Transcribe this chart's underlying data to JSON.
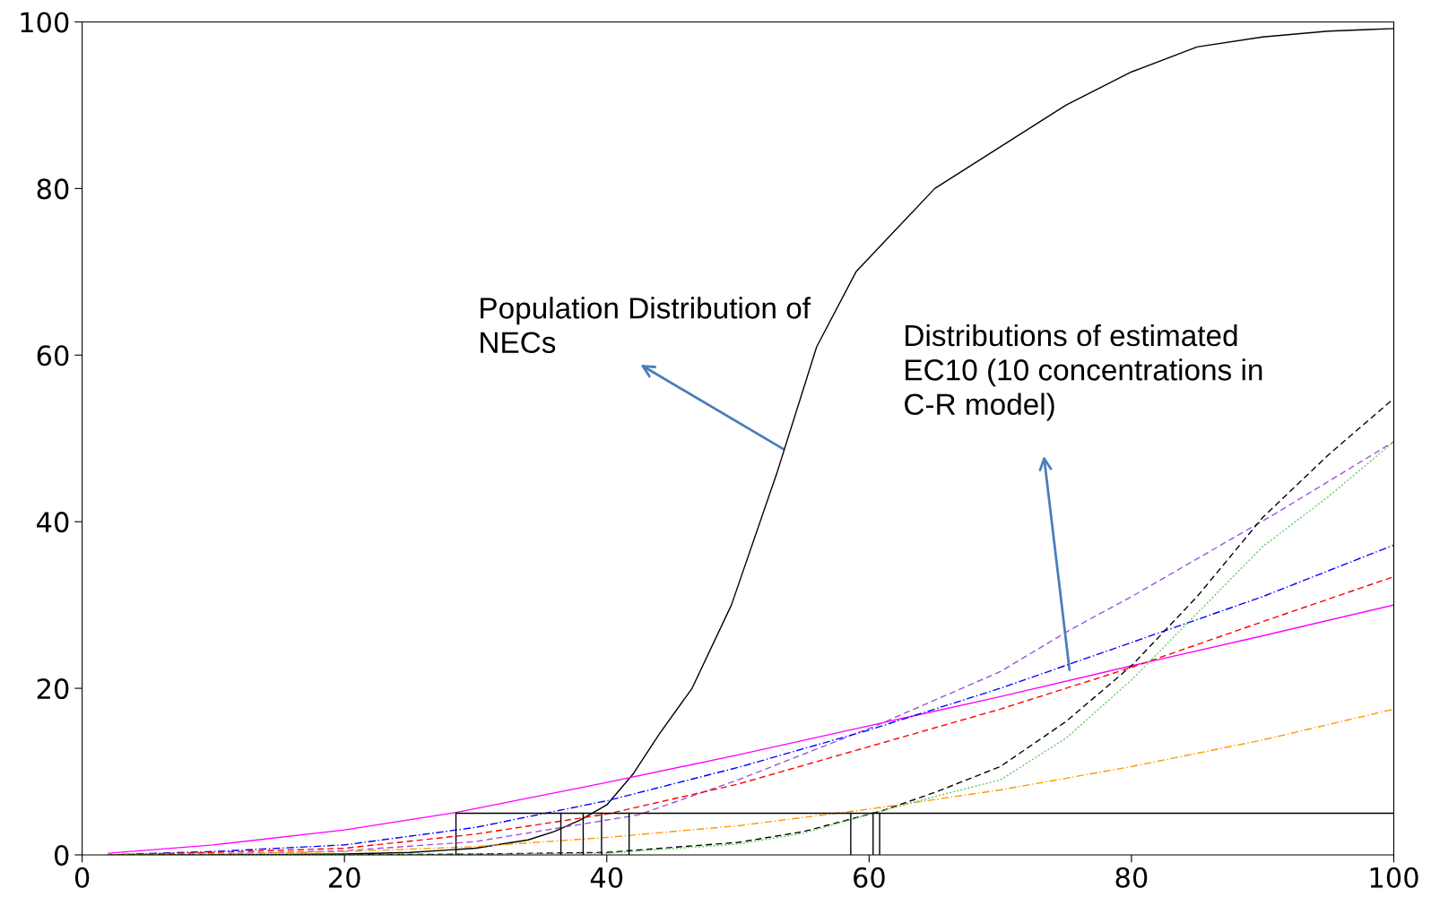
{
  "chart_data": {
    "type": "line",
    "xlim": [
      0,
      100
    ],
    "ylim": [
      0,
      100
    ],
    "xticks": [
      0,
      20,
      40,
      60,
      80,
      100
    ],
    "yticks": [
      0,
      20,
      40,
      60,
      80,
      100
    ],
    "grid": false,
    "legend": false,
    "annotations": [
      "Population Distribution of\nNECs",
      "Distributions of estimated\nEC10 (10 concentrations in\nC-R model)"
    ],
    "series": [
      {
        "color": "#000000",
        "line_style": "solid",
        "x": [
          2,
          10,
          20,
          25,
          30,
          34,
          36,
          38,
          40,
          42,
          44,
          46.5,
          49.5,
          53,
          56,
          59,
          62,
          65,
          70,
          75,
          80,
          85,
          90,
          95,
          100
        ],
        "values": [
          0,
          0,
          0.1,
          0.3,
          0.8,
          1.8,
          2.8,
          4.2,
          6,
          9.7,
          14.5,
          20,
          30,
          46,
          61,
          70,
          75,
          80,
          85,
          90,
          94,
          97,
          98.2,
          98.9,
          99.2
        ]
      },
      {
        "color": "#ff00ff",
        "line_style": "solid",
        "x": [
          2,
          10,
          20,
          28.5,
          40,
          50,
          60,
          70,
          80,
          90,
          100
        ],
        "values": [
          0.2,
          1.2,
          3,
          5.1,
          8.7,
          12,
          15.5,
          19,
          22.7,
          26.3,
          30
        ]
      },
      {
        "color": "#9955dd",
        "line_style": "dashed",
        "x": [
          2,
          10,
          20,
          30,
          42.4,
          50,
          60.5,
          70,
          75.3,
          80,
          91,
          100
        ],
        "values": [
          0,
          0.1,
          0.5,
          1.6,
          4.8,
          9,
          15.5,
          22,
          27,
          31,
          41,
          49.6
        ]
      },
      {
        "color": "#0000ff",
        "line_style": "dashdot",
        "x": [
          2,
          10,
          20,
          30,
          40,
          50,
          60,
          70,
          80,
          90,
          100
        ],
        "values": [
          0,
          0.4,
          1.2,
          3.3,
          6.5,
          10.5,
          15,
          20,
          25.5,
          31,
          37.2
        ]
      },
      {
        "color": "#ff0000",
        "line_style": "dashed",
        "x": [
          2,
          10,
          20,
          30,
          40,
          50,
          60,
          70,
          80,
          90,
          100
        ],
        "values": [
          0,
          0.3,
          0.8,
          2.5,
          4.9,
          8.5,
          13,
          17.5,
          22.5,
          28,
          33.4
        ]
      },
      {
        "color": "#ff9900",
        "line_style": "dashdot",
        "x": [
          2,
          10,
          20,
          30,
          40,
          50,
          60,
          70,
          80,
          90,
          100
        ],
        "values": [
          0,
          0.1,
          0.4,
          1,
          2.1,
          3.5,
          5.5,
          7.8,
          10.6,
          13.8,
          17.5
        ]
      },
      {
        "color": "#000000",
        "line_style": "dashed",
        "x": [
          2,
          20,
          30,
          40,
          50,
          55,
          61,
          65,
          70,
          75,
          80,
          85,
          90,
          95,
          100
        ],
        "values": [
          0,
          0,
          0.1,
          0.3,
          1.5,
          2.8,
          5.3,
          7.5,
          10.6,
          16,
          22.7,
          31,
          40.5,
          48,
          54.8
        ]
      },
      {
        "color": "#66cc66",
        "line_style": "dotted",
        "x": [
          2,
          20,
          30,
          40,
          50,
          55,
          61,
          65,
          70,
          75,
          80,
          85,
          90,
          95,
          100
        ],
        "values": [
          0,
          0,
          0.1,
          0.2,
          1.3,
          2.6,
          5.3,
          7,
          9,
          14,
          21,
          29,
          37,
          43,
          49.6
        ]
      },
      {
        "color": "#000000",
        "line_style": "solid",
        "x": [
          28.5,
          100
        ],
        "values": [
          5,
          5
        ]
      },
      {
        "color": "#000000",
        "line_style": "solid",
        "x": [
          28.5,
          28.5
        ],
        "values": [
          0,
          5
        ]
      },
      {
        "color": "#000000",
        "line_style": "solid",
        "x": [
          36.5,
          36.5
        ],
        "values": [
          0,
          5
        ]
      },
      {
        "color": "#000000",
        "line_style": "solid",
        "x": [
          38.2,
          38.2
        ],
        "values": [
          0,
          5
        ]
      },
      {
        "color": "#000000",
        "line_style": "solid",
        "x": [
          39.6,
          39.6
        ],
        "values": [
          0,
          5
        ]
      },
      {
        "color": "#000000",
        "line_style": "solid",
        "x": [
          41.7,
          41.7
        ],
        "values": [
          0,
          5
        ]
      },
      {
        "color": "#000000",
        "line_style": "solid",
        "x": [
          58.6,
          58.6
        ],
        "values": [
          0,
          5
        ]
      },
      {
        "color": "#000000",
        "line_style": "solid",
        "x": [
          60.3,
          60.3
        ],
        "values": [
          0,
          5
        ]
      },
      {
        "color": "#000000",
        "line_style": "solid",
        "x": [
          60.8,
          60.8
        ],
        "values": [
          0,
          5
        ]
      }
    ]
  }
}
